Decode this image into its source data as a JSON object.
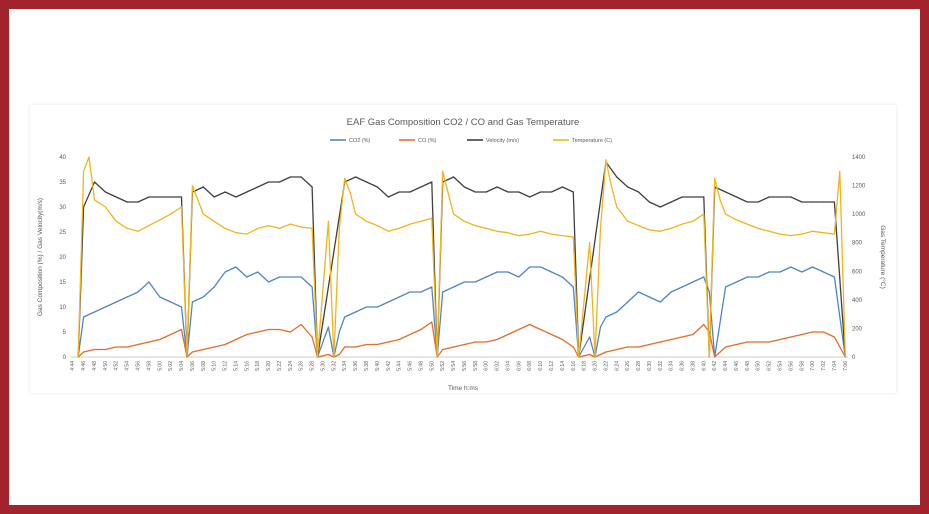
{
  "chart_data": {
    "type": "line",
    "title": "EAF Gas Composition CO2 / CO and Gas Temperature",
    "xlabel": "Time h:ms",
    "ylabel": "Gas Composition (%) / Gas Velocity(m/s)",
    "y2label": "Gas Temperature (°C)",
    "ylim": [
      0,
      40
    ],
    "y2lim": [
      0,
      1400
    ],
    "yticks": [
      0,
      5,
      10,
      15,
      20,
      25,
      30,
      35,
      40
    ],
    "y2ticks": [
      0,
      200,
      400,
      600,
      800,
      1000,
      1200,
      1400
    ],
    "x_ticks": [
      "4:44",
      "4:46",
      "4:48",
      "4:50",
      "4:52",
      "4:54",
      "4:56",
      "4:58",
      "5:00",
      "5:02",
      "5:04",
      "5:06",
      "5:08",
      "5:10",
      "5:12",
      "5:14",
      "5:16",
      "5:18",
      "5:20",
      "5:22",
      "5:24",
      "5:26",
      "5:28",
      "5:30",
      "5:32",
      "5:34",
      "5:36",
      "5:38",
      "5:40",
      "5:42",
      "5:44",
      "5:46",
      "5:48",
      "5:50",
      "5:52",
      "5:54",
      "5:56",
      "5:58",
      "6:00",
      "6:02",
      "6:04",
      "6:06",
      "6:08",
      "6:10",
      "6:12",
      "6:14",
      "6:16",
      "6:18",
      "6:20",
      "6:22",
      "6:24",
      "6:26",
      "6:28",
      "6:30",
      "6:32",
      "6:34",
      "6:36",
      "6:38",
      "6:40",
      "6:42",
      "6:44",
      "6:46",
      "6:48",
      "6:50",
      "6:52",
      "6:54",
      "6:56",
      "6:58",
      "7:00",
      "7:02",
      "7:04",
      "7:06"
    ],
    "grid": false,
    "legend_position": "top",
    "series": [
      {
        "name": "CO2 (%)",
        "axis": "left",
        "color": "#4f86c6",
        "x": [
          "4:45",
          "4:46",
          "4:48",
          "4:50",
          "4:52",
          "4:54",
          "4:56",
          "4:58",
          "5:00",
          "5:02",
          "5:04",
          "5:05",
          "5:06",
          "5:08",
          "5:10",
          "5:12",
          "5:14",
          "5:16",
          "5:18",
          "5:20",
          "5:22",
          "5:24",
          "5:26",
          "5:28",
          "5:29",
          "5:31",
          "5:32",
          "5:33",
          "5:34",
          "5:36",
          "5:38",
          "5:40",
          "5:42",
          "5:44",
          "5:46",
          "5:48",
          "5:50",
          "5:51",
          "5:52",
          "5:54",
          "5:56",
          "5:58",
          "6:00",
          "6:02",
          "6:04",
          "6:06",
          "6:08",
          "6:10",
          "6:12",
          "6:14",
          "6:16",
          "6:17",
          "6:19",
          "6:20",
          "6:21",
          "6:22",
          "6:24",
          "6:26",
          "6:28",
          "6:30",
          "6:32",
          "6:34",
          "6:36",
          "6:38",
          "6:40",
          "6:41",
          "6:42",
          "6:44",
          "6:46",
          "6:48",
          "6:50",
          "6:52",
          "6:54",
          "6:56",
          "6:58",
          "7:00",
          "7:02",
          "7:04",
          "7:06"
        ],
        "values": [
          0,
          8,
          9,
          10,
          11,
          12,
          13,
          15,
          12,
          11,
          10,
          0,
          11,
          12,
          14,
          17,
          18,
          16,
          17,
          15,
          16,
          16,
          16,
          14,
          0,
          6,
          0,
          5,
          8,
          9,
          10,
          10,
          11,
          12,
          13,
          13,
          14,
          0,
          13,
          14,
          15,
          15,
          16,
          17,
          17,
          16,
          18,
          18,
          17,
          16,
          14,
          0,
          4,
          0,
          6,
          8,
          9,
          11,
          13,
          12,
          11,
          13,
          14,
          15,
          16,
          13,
          0,
          14,
          15,
          16,
          16,
          17,
          17,
          18,
          17,
          18,
          17,
          16,
          0
        ]
      },
      {
        "name": "CO (%)",
        "axis": "left",
        "color": "#e46c2a",
        "x": [
          "4:45",
          "4:46",
          "4:48",
          "4:50",
          "4:52",
          "4:54",
          "4:56",
          "4:58",
          "5:00",
          "5:02",
          "5:04",
          "5:05",
          "5:06",
          "5:08",
          "5:10",
          "5:12",
          "5:14",
          "5:16",
          "5:18",
          "5:20",
          "5:22",
          "5:24",
          "5:26",
          "5:28",
          "5:29",
          "5:31",
          "5:32",
          "5:33",
          "5:34",
          "5:36",
          "5:38",
          "5:40",
          "5:42",
          "5:44",
          "5:46",
          "5:48",
          "5:50",
          "5:51",
          "5:52",
          "5:54",
          "5:56",
          "5:58",
          "6:00",
          "6:02",
          "6:04",
          "6:06",
          "6:08",
          "6:10",
          "6:12",
          "6:14",
          "6:16",
          "6:17",
          "6:19",
          "6:20",
          "6:21",
          "6:22",
          "6:24",
          "6:26",
          "6:28",
          "6:30",
          "6:32",
          "6:34",
          "6:36",
          "6:38",
          "6:40",
          "6:41",
          "6:42",
          "6:44",
          "6:46",
          "6:48",
          "6:50",
          "6:52",
          "6:54",
          "6:56",
          "6:58",
          "7:00",
          "7:02",
          "7:04",
          "7:06"
        ],
        "values": [
          0,
          1,
          1.5,
          1.5,
          2,
          2,
          2.5,
          3,
          3.5,
          4.5,
          5.5,
          0,
          1,
          1.5,
          2,
          2.5,
          3.5,
          4.5,
          5,
          5.5,
          5.5,
          5,
          6.5,
          4,
          0,
          0.5,
          0,
          0.5,
          2,
          2,
          2.5,
          2.5,
          3,
          3.5,
          4.5,
          5.5,
          7,
          0,
          1.5,
          2,
          2.5,
          3,
          3,
          3.5,
          4.5,
          5.5,
          6.5,
          5.5,
          4.5,
          3.5,
          2,
          0,
          0.5,
          0,
          0.5,
          1,
          1.5,
          2,
          2,
          2.5,
          3,
          3.5,
          4,
          4.5,
          6.5,
          5,
          0,
          2,
          2.5,
          3,
          3,
          3,
          3.5,
          4,
          4.5,
          5,
          5,
          4,
          0
        ]
      },
      {
        "name": "Velocity (m/s)",
        "axis": "left",
        "color": "#404040",
        "x": [
          "4:45",
          "4:46",
          "4:48",
          "4:50",
          "4:52",
          "4:54",
          "4:56",
          "4:58",
          "5:00",
          "5:02",
          "5:04",
          "5:05",
          "5:06",
          "5:08",
          "5:10",
          "5:12",
          "5:14",
          "5:16",
          "5:18",
          "5:20",
          "5:22",
          "5:24",
          "5:26",
          "5:28",
          "5:29",
          "5:34",
          "5:36",
          "5:38",
          "5:40",
          "5:42",
          "5:44",
          "5:46",
          "5:48",
          "5:50",
          "5:51",
          "5:52",
          "5:54",
          "5:56",
          "5:58",
          "6:00",
          "6:02",
          "6:04",
          "6:06",
          "6:08",
          "6:10",
          "6:12",
          "6:14",
          "6:16",
          "6:17",
          "6:22",
          "6:24",
          "6:26",
          "6:28",
          "6:30",
          "6:32",
          "6:34",
          "6:36",
          "6:38",
          "6:40",
          "6:41",
          "6:42",
          "6:44",
          "6:46",
          "6:48",
          "6:50",
          "6:52",
          "6:54",
          "6:56",
          "6:58",
          "7:00",
          "7:02",
          "7:04",
          "7:06"
        ],
        "values": [
          0,
          30,
          35,
          33,
          32,
          31,
          31,
          32,
          32,
          32,
          32,
          0,
          33,
          34,
          32,
          33,
          32,
          33,
          34,
          35,
          35,
          36,
          36,
          34,
          0,
          35,
          36,
          35,
          34,
          32,
          33,
          33,
          34,
          35,
          0,
          35,
          36,
          34,
          33,
          33,
          34,
          33,
          33,
          32,
          33,
          33,
          34,
          33,
          0,
          39,
          36,
          34,
          33,
          31,
          30,
          31,
          32,
          32,
          32,
          0,
          34,
          33,
          32,
          31,
          31,
          32,
          32,
          32,
          31,
          31,
          31,
          31,
          0
        ]
      },
      {
        "name": "Temperature (C)",
        "axis": "right",
        "color": "#f0b51e",
        "x": [
          "4:45",
          "4:46",
          "4:47",
          "4:48",
          "4:50",
          "4:52",
          "4:54",
          "4:56",
          "4:58",
          "5:00",
          "5:02",
          "5:04",
          "5:05",
          "5:06",
          "5:07",
          "5:08",
          "5:10",
          "5:12",
          "5:14",
          "5:16",
          "5:18",
          "5:20",
          "5:22",
          "5:24",
          "5:26",
          "5:28",
          "5:29",
          "5:31",
          "5:32",
          "5:33",
          "5:34",
          "5:35",
          "5:36",
          "5:38",
          "5:40",
          "5:42",
          "5:44",
          "5:46",
          "5:48",
          "5:50",
          "5:51",
          "5:52",
          "5:53",
          "5:54",
          "5:56",
          "5:58",
          "6:00",
          "6:02",
          "6:04",
          "6:06",
          "6:08",
          "6:10",
          "6:12",
          "6:14",
          "6:16",
          "6:17",
          "6:19",
          "6:20",
          "6:21",
          "6:22",
          "6:23",
          "6:24",
          "6:26",
          "6:28",
          "6:30",
          "6:32",
          "6:34",
          "6:36",
          "6:38",
          "6:40",
          "6:41",
          "6:42",
          "6:43",
          "6:44",
          "6:46",
          "6:48",
          "6:50",
          "6:52",
          "6:54",
          "6:56",
          "6:58",
          "7:00",
          "7:02",
          "7:04",
          "7:05",
          "7:06"
        ],
        "values": [
          0,
          1300,
          1400,
          1100,
          1050,
          950,
          900,
          880,
          920,
          960,
          1000,
          1050,
          0,
          1200,
          1100,
          1000,
          950,
          900,
          870,
          860,
          900,
          920,
          900,
          930,
          910,
          900,
          0,
          950,
          0,
          900,
          1250,
          1150,
          1000,
          950,
          920,
          880,
          900,
          930,
          950,
          970,
          0,
          1300,
          1150,
          1000,
          950,
          920,
          900,
          880,
          870,
          850,
          860,
          880,
          860,
          850,
          840,
          0,
          800,
          0,
          900,
          1380,
          1200,
          1050,
          950,
          920,
          890,
          880,
          900,
          930,
          950,
          1000,
          0,
          1250,
          1100,
          1000,
          960,
          930,
          900,
          880,
          860,
          850,
          860,
          880,
          870,
          860,
          1300,
          0
        ]
      }
    ]
  }
}
